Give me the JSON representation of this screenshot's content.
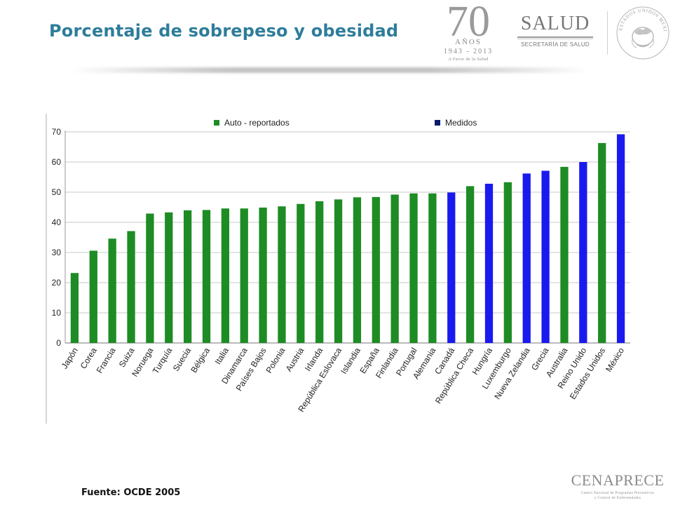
{
  "slide": {
    "title": "Porcentaje de sobrepeso y obesidad",
    "source": "Fuente: OCDE 2005"
  },
  "logos": {
    "anniversary": {
      "number": "70",
      "word": "AÑOS",
      "years": "1943 - 2013",
      "tagline": "A Favor de la Salud"
    },
    "salud": {
      "name": "SALUD",
      "caption": "SECRETARÍA DE SALUD"
    },
    "seal": {
      "text": "ESTADOS UNIDOS MEXICANOS"
    },
    "cenaprece": {
      "name": "CENAPRECE",
      "line1": "Centro Nacional de Programas Preventivos",
      "line2": "y Control de Enfermedades"
    }
  },
  "colors": {
    "title": "#2e7d9a",
    "auto_reportados": "#1e8c24",
    "medidos": "#1a1aee",
    "legend_medidos": "#0a1a6e",
    "grid": "#c8c8c8"
  },
  "chart_data": {
    "type": "bar",
    "categories": [
      "Japón",
      "Corea",
      "Francia",
      "Suiza",
      "Noruega",
      "Turquía",
      "Suecia",
      "Bélgica",
      "Italia",
      "Dinamarca",
      "Países Bajos",
      "Polonia",
      "Austria",
      "Irlanda",
      "República Eslovaca",
      "Islandia",
      "España",
      "Finlandia",
      "Portugal",
      "Alemania",
      "Canadá",
      "República Checa",
      "Hungría",
      "Luxemburgo",
      "Nueva Zelandia",
      "Grecia",
      "Australia",
      "Reino Unido",
      "Estados Unidos",
      "México"
    ],
    "values": [
      23.2,
      30.6,
      34.6,
      37.1,
      42.9,
      43.3,
      44.0,
      44.1,
      44.6,
      44.6,
      44.9,
      45.3,
      46.1,
      47.0,
      47.6,
      48.3,
      48.4,
      49.2,
      49.6,
      49.6,
      49.9,
      52.0,
      52.8,
      53.3,
      56.2,
      57.1,
      58.4,
      60.0,
      66.3,
      69.2
    ],
    "series_membership": [
      "Auto - reportados",
      "Auto - reportados",
      "Auto - reportados",
      "Auto - reportados",
      "Auto - reportados",
      "Auto - reportados",
      "Auto - reportados",
      "Auto - reportados",
      "Auto - reportados",
      "Auto - reportados",
      "Auto - reportados",
      "Auto - reportados",
      "Auto - reportados",
      "Auto - reportados",
      "Auto - reportados",
      "Auto - reportados",
      "Auto - reportados",
      "Auto - reportados",
      "Auto - reportados",
      "Auto - reportados",
      "Medidos",
      "Auto - reportados",
      "Medidos",
      "Auto - reportados",
      "Medidos",
      "Medidos",
      "Auto - reportados",
      "Medidos",
      "Auto - reportados",
      "Medidos"
    ],
    "legend": [
      {
        "name": "Auto - reportados",
        "color": "#1e8c24"
      },
      {
        "name": "Medidos",
        "color": "#0a1a6e"
      }
    ],
    "legend_position": "top",
    "ylim": [
      0,
      70
    ],
    "yticks": [
      0,
      10,
      20,
      30,
      40,
      50,
      60,
      70
    ],
    "grid": true,
    "title": "",
    "xlabel": "",
    "ylabel": ""
  }
}
